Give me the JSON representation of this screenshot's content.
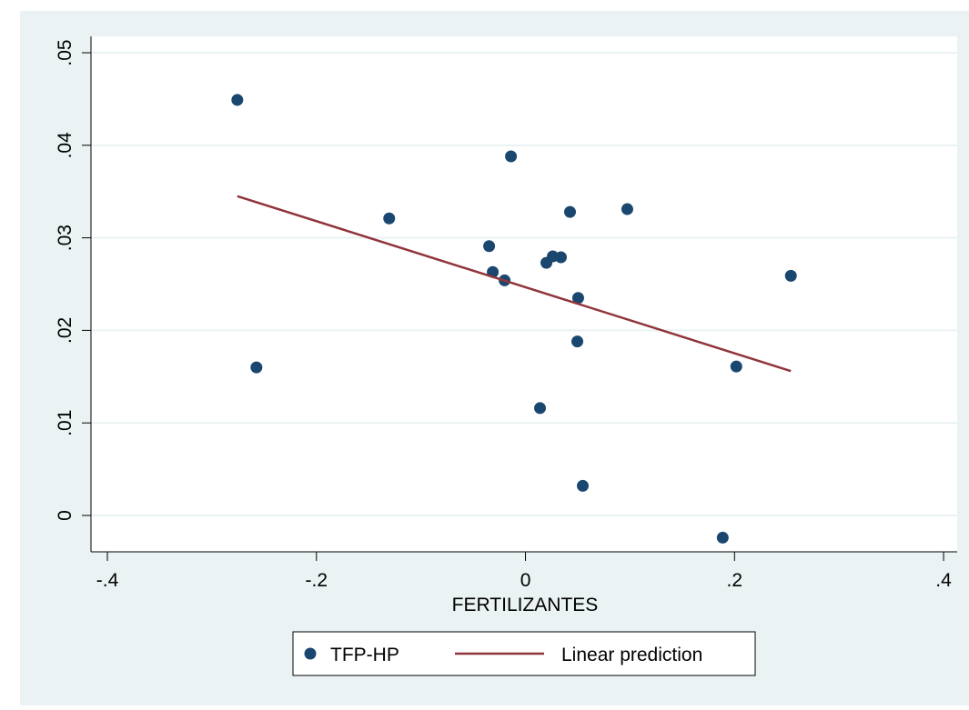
{
  "chart_data": {
    "type": "scatter",
    "x_label": "FERTILIZANTES",
    "xlim": [
      -0.4157,
      0.413
    ],
    "ylim": [
      -0.00393,
      0.05177
    ],
    "xticks": [
      {
        "value": -0.4,
        "label": "-.4"
      },
      {
        "value": -0.2,
        "label": "-.2"
      },
      0,
      {
        "value": 0.2,
        "label": ".2"
      },
      {
        "value": 0.4,
        "label": ".4"
      }
    ],
    "yticks": [
      0,
      {
        "value": 0.01,
        "label": ".01"
      },
      {
        "value": 0.02,
        "label": ".02"
      },
      {
        "value": 0.03,
        "label": ".03"
      },
      {
        "value": 0.04,
        "label": ".04"
      },
      {
        "value": 0.05,
        "label": ".05"
      }
    ],
    "grid": true,
    "series": [
      {
        "name": "TFP-HP",
        "type": "scatter",
        "color": "#1a476f",
        "x": [
          -0.2757,
          -0.0139,
          -0.1304,
          0.0426,
          0.0974,
          -0.0348,
          -0.0313,
          -0.02,
          0.02,
          0.0261,
          0.0339,
          0.0504,
          0.2539,
          0.0496,
          -0.2574,
          0.2017,
          0.0139,
          0.0548,
          0.1887
        ],
        "values": [
          0.0449,
          0.0388,
          0.0321,
          0.0328,
          0.0331,
          0.0291,
          0.0263,
          0.0254,
          0.0273,
          0.028,
          0.0279,
          0.0235,
          0.0259,
          0.0188,
          0.016,
          0.0161,
          0.0116,
          0.0032,
          -0.0024
        ]
      },
      {
        "name": "Linear prediction",
        "type": "line",
        "color": "#90353b",
        "x": [
          -0.2757,
          0.2539
        ],
        "values": [
          0.0345,
          0.0156
        ]
      }
    ]
  }
}
